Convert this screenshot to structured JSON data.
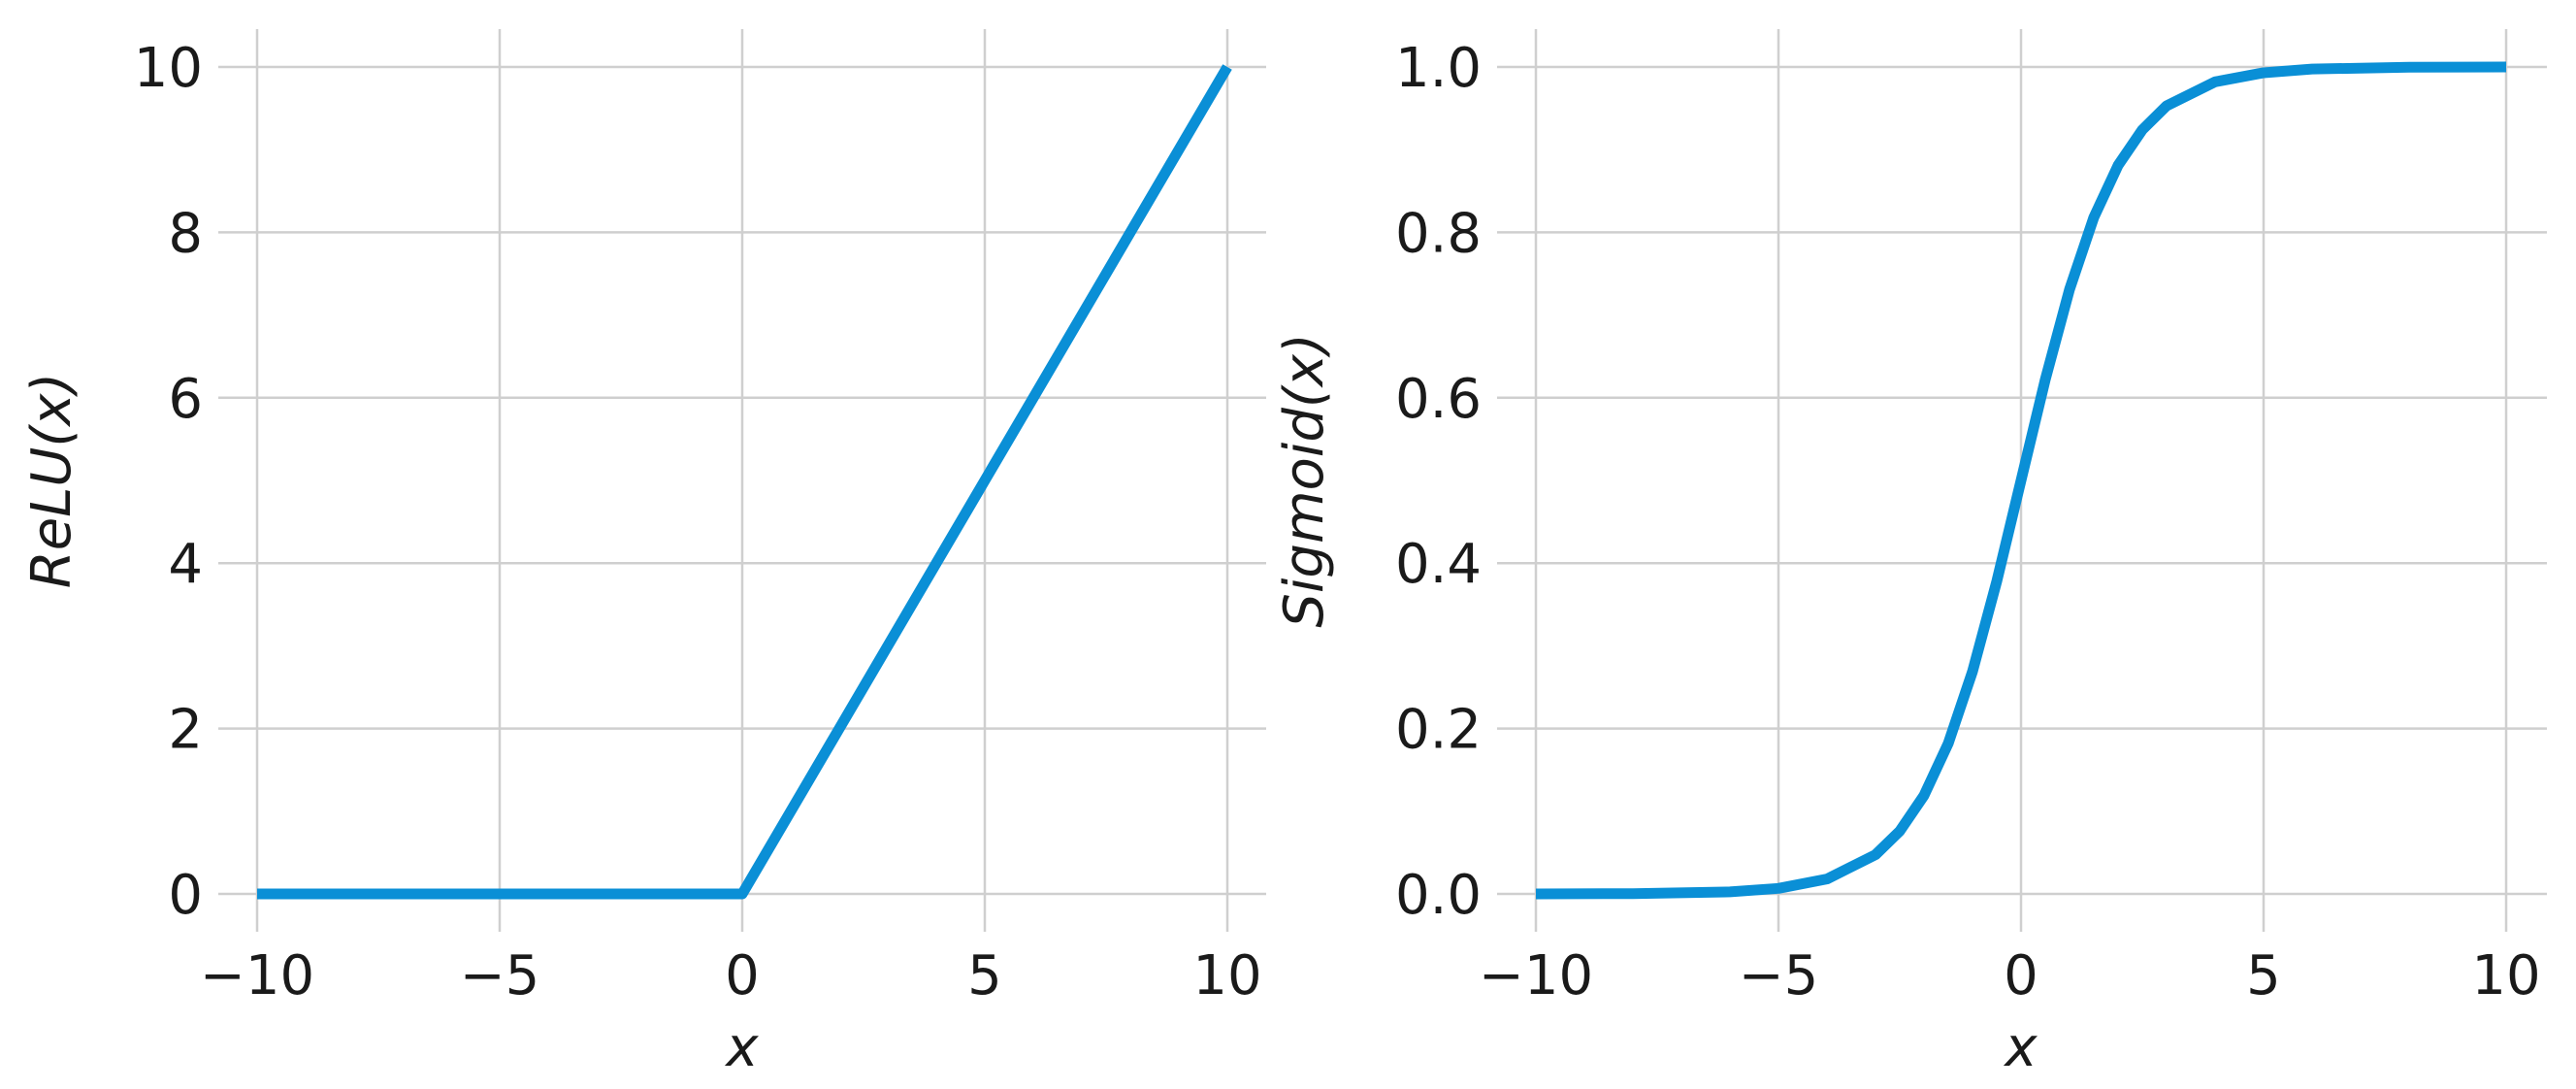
{
  "colors": {
    "line": "#0a8fd6",
    "grid": "#cfcfcf"
  },
  "chart_data": [
    {
      "type": "line",
      "title": "",
      "xlabel": "x",
      "ylabel": "ReLU(x)",
      "xlim": [
        -10,
        10
      ],
      "ylim": [
        0,
        10
      ],
      "grid": true,
      "x_ticks": [
        -10,
        -5,
        0,
        5,
        10
      ],
      "x_tick_labels": [
        "−10",
        "−5",
        "0",
        "5",
        "10"
      ],
      "y_ticks": [
        0,
        2,
        4,
        6,
        8,
        10
      ],
      "y_tick_labels": [
        "0",
        "2",
        "4",
        "6",
        "8",
        "10"
      ],
      "series": [
        {
          "x": [
            -10,
            -8,
            -6,
            -4,
            -2,
            0,
            2,
            4,
            6,
            8,
            10
          ],
          "y": [
            0,
            0,
            0,
            0,
            0,
            0,
            2,
            4,
            6,
            8,
            10
          ]
        }
      ]
    },
    {
      "type": "line",
      "title": "",
      "xlabel": "x",
      "ylabel": "Sigmoid(x)",
      "xlim": [
        -10,
        10
      ],
      "ylim": [
        0,
        1
      ],
      "grid": true,
      "x_ticks": [
        -10,
        -5,
        0,
        5,
        10
      ],
      "x_tick_labels": [
        "−10",
        "−5",
        "0",
        "5",
        "10"
      ],
      "y_ticks": [
        0,
        0.2,
        0.4,
        0.6,
        0.8,
        1.0
      ],
      "y_tick_labels": [
        "0.0",
        "0.2",
        "0.4",
        "0.6",
        "0.8",
        "1.0"
      ],
      "series": [
        {
          "x": [
            -10,
            -8,
            -6,
            -5,
            -4,
            -3,
            -2.5,
            -2,
            -1.5,
            -1,
            -0.5,
            0,
            0.5,
            1,
            1.5,
            2,
            2.5,
            3,
            4,
            5,
            6,
            8,
            10
          ],
          "y": [
            4.54e-05,
            0.000335,
            0.00247,
            0.00669,
            0.018,
            0.0474,
            0.0759,
            0.119,
            0.182,
            0.269,
            0.378,
            0.5,
            0.622,
            0.731,
            0.818,
            0.881,
            0.924,
            0.953,
            0.982,
            0.993,
            0.9975,
            0.99966,
            0.99995
          ]
        }
      ]
    }
  ]
}
